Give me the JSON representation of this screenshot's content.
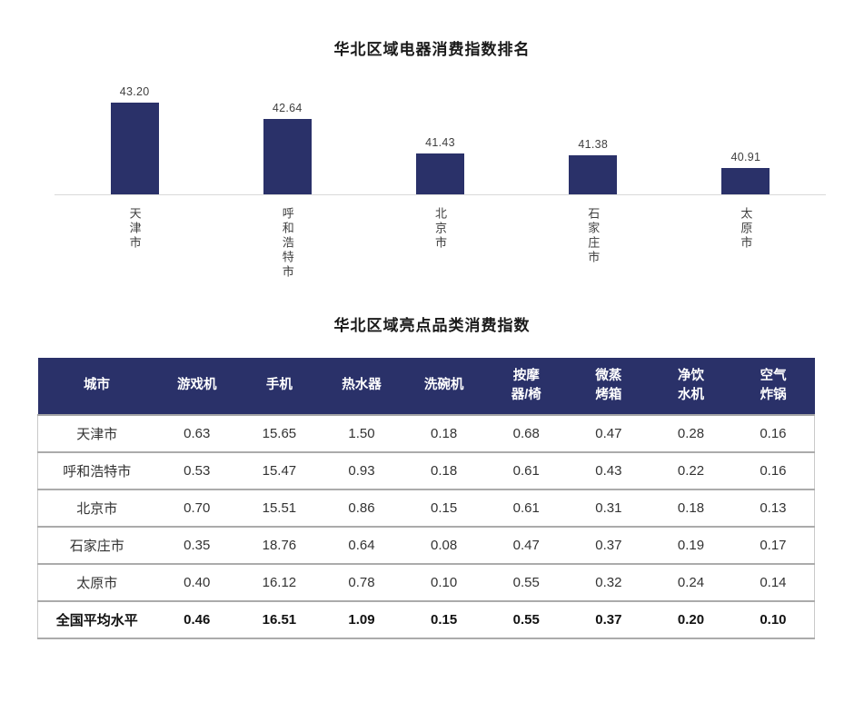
{
  "colors": {
    "bar_navy": "#2A3169",
    "header_navy": "#2A3169",
    "axis_line": "#d9d9d9",
    "row_border": "#a6a6a6",
    "label_text": "#3f3f3f",
    "header_text": "#ffffff"
  },
  "chart_data": {
    "type": "bar",
    "title": "华北区域电器消费指数排名",
    "categories": [
      "天津市",
      "呼和浩特市",
      "北京市",
      "石家庄市",
      "太原市"
    ],
    "values": [
      43.2,
      42.64,
      41.43,
      41.38,
      40.91
    ],
    "data_labels": [
      "43.20",
      "42.64",
      "41.43",
      "41.38",
      "40.91"
    ],
    "xlabel": "",
    "ylabel": "",
    "ylim": [
      40,
      43.5
    ],
    "grid": false,
    "legend": "none",
    "bar_color": "#2A3169",
    "data_label_position": "above-bar",
    "category_label_orientation": "vertical-upright"
  },
  "table": {
    "title": "华北区域亮点品类消费指数",
    "columns": [
      "城市",
      "游戏机",
      "手机",
      "热水器",
      "洗碗机",
      "按摩\n器/椅",
      "微蒸\n烤箱",
      "净饮\n水机",
      "空气\n炸锅"
    ],
    "rows": [
      {
        "city": "天津市",
        "values": [
          "0.63",
          "15.65",
          "1.50",
          "0.18",
          "0.68",
          "0.47",
          "0.28",
          "0.16"
        ]
      },
      {
        "city": "呼和浩特市",
        "values": [
          "0.53",
          "15.47",
          "0.93",
          "0.18",
          "0.61",
          "0.43",
          "0.22",
          "0.16"
        ]
      },
      {
        "city": "北京市",
        "values": [
          "0.70",
          "15.51",
          "0.86",
          "0.15",
          "0.61",
          "0.31",
          "0.18",
          "0.13"
        ]
      },
      {
        "city": "石家庄市",
        "values": [
          "0.35",
          "18.76",
          "0.64",
          "0.08",
          "0.47",
          "0.37",
          "0.19",
          "0.17"
        ]
      },
      {
        "city": "太原市",
        "values": [
          "0.40",
          "16.12",
          "0.78",
          "0.10",
          "0.55",
          "0.32",
          "0.24",
          "0.14"
        ]
      }
    ],
    "footer_row": {
      "city": "全国平均水平",
      "values": [
        "0.46",
        "16.51",
        "1.09",
        "0.15",
        "0.55",
        "0.37",
        "0.20",
        "0.10"
      ]
    }
  }
}
